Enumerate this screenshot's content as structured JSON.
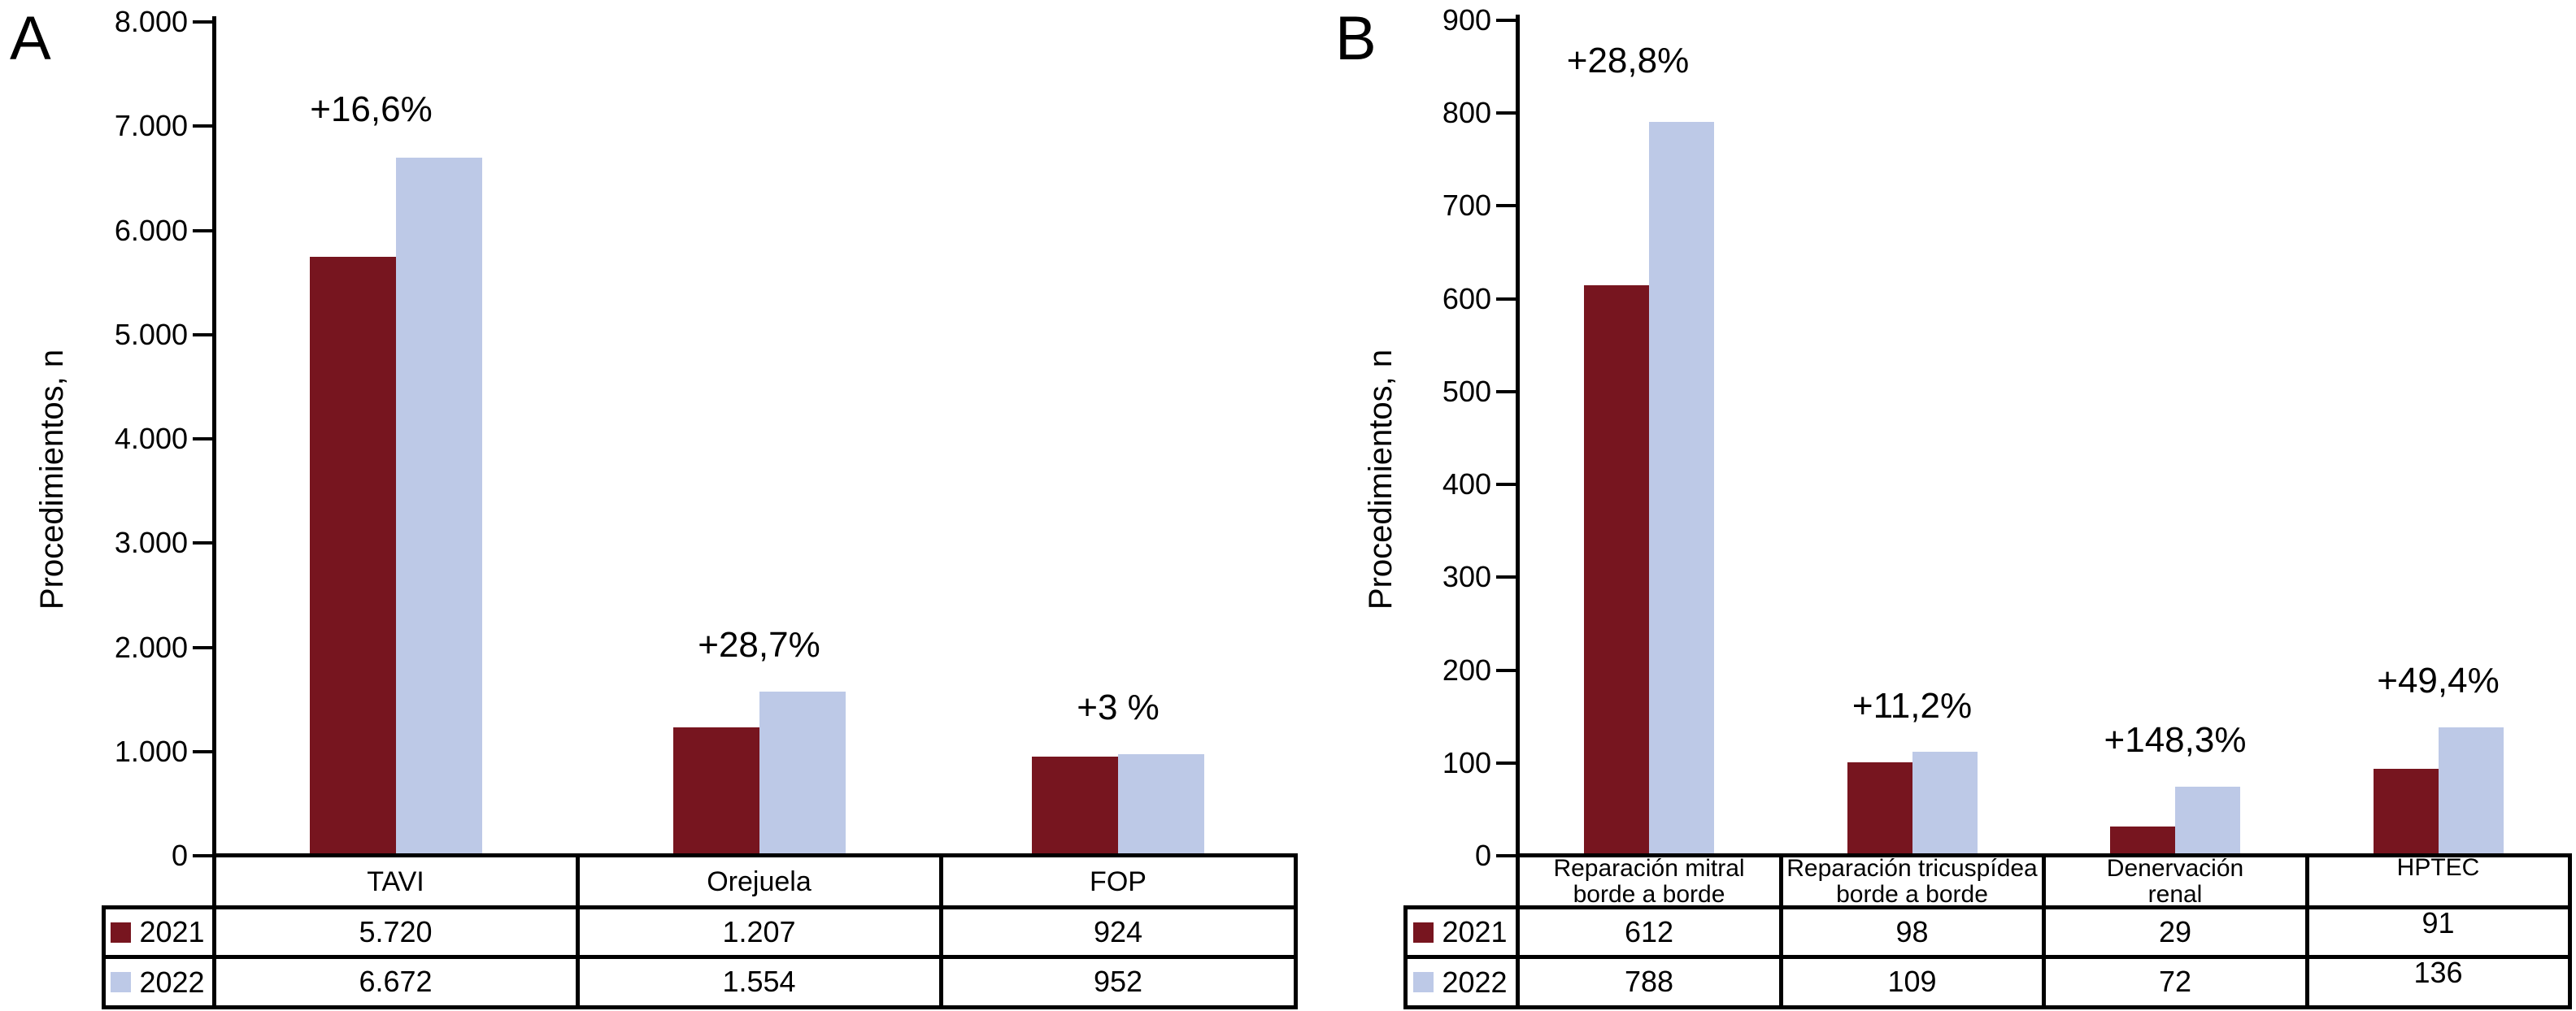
{
  "colors": {
    "series_2021": "#77151F",
    "series_2022": "#BDC9E7",
    "axis": "#000000",
    "background": "#FFFFFF"
  },
  "chart_data": [
    {
      "type": "bar",
      "panel_label": "A",
      "ylabel": "Procedimientos, n",
      "ylim": [
        0,
        8000
      ],
      "ytick_step": 1000,
      "ytick_labels": [
        "0",
        "1.000",
        "2.000",
        "3.000",
        "4.000",
        "5.000",
        "6.000",
        "7.000",
        "8.000"
      ],
      "grid": false,
      "legend_position": "table-left-column",
      "categories": [
        "TAVI",
        "Orejuela",
        "FOP"
      ],
      "categories_lines": [
        [
          "TAVI"
        ],
        [
          "Orejuela"
        ],
        [
          "FOP"
        ]
      ],
      "series": [
        {
          "name": "2021",
          "values": [
            5720,
            1207,
            924
          ],
          "display": [
            "5.720",
            "1.207",
            "924"
          ]
        },
        {
          "name": "2022",
          "values": [
            6672,
            1554,
            952
          ],
          "display": [
            "6.672",
            "1.554",
            "952"
          ]
        }
      ],
      "pct_change_labels": [
        "+16,6%",
        "+28,7%",
        "+3 %"
      ]
    },
    {
      "type": "bar",
      "panel_label": "B",
      "ylabel": "Procedimientos, n",
      "ylim": [
        0,
        900
      ],
      "ytick_step": 100,
      "ytick_labels": [
        "0",
        "100",
        "200",
        "300",
        "400",
        "500",
        "600",
        "700",
        "800",
        "900"
      ],
      "grid": false,
      "legend_position": "table-left-column",
      "categories": [
        "Reparación mitral borde a borde",
        "Reparación tricuspídea borde a borde",
        "Denervación renal",
        "HPTEC"
      ],
      "categories_lines": [
        [
          "Reparación mitral",
          "borde a borde"
        ],
        [
          "Reparación tricuspídea",
          "borde a borde"
        ],
        [
          "Denervación",
          "renal"
        ],
        [
          "HPTEC"
        ]
      ],
      "series": [
        {
          "name": "2021",
          "values": [
            612,
            98,
            29,
            91
          ],
          "display": [
            "612",
            "98",
            "29",
            "91"
          ]
        },
        {
          "name": "2022",
          "values": [
            788,
            109,
            72,
            136
          ],
          "display": [
            "788",
            "109",
            "72",
            "136"
          ]
        }
      ],
      "pct_change_labels": [
        "+28,8%",
        "+11,2%",
        "+148,3%",
        "+49,4%"
      ]
    }
  ]
}
